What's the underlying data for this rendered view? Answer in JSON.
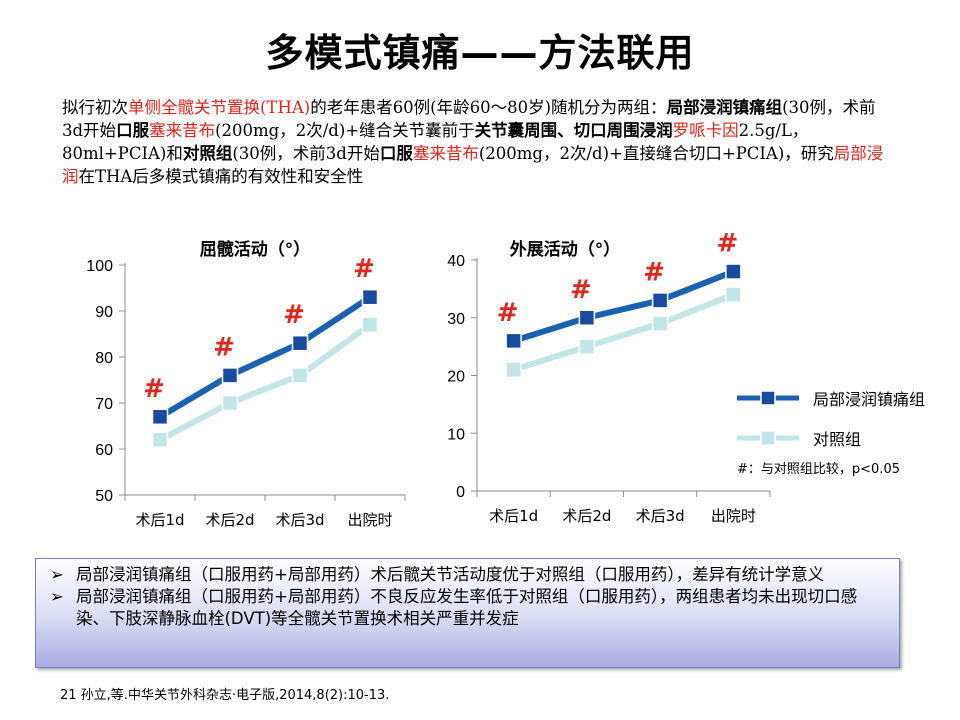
{
  "title": "多模式镇痛——方法联用",
  "intro": {
    "p1": "拟行初次",
    "p2": "单侧全髋关节置换(THA)",
    "p3": "的老年患者60例(年龄60～80岁)随机分为两组：",
    "p4": "局部浸润镇痛组",
    "p5": "(30例，术前3d开始",
    "p6": "口服",
    "p7": "塞来昔布",
    "p8": "(200mg，2次/d)+缝合关节囊前于",
    "p9": "关节囊周围、切口周围浸润",
    "p10": "罗哌卡因",
    "p11": "2.5g/L，80ml+PCIA)和",
    "p12": "对照组",
    "p13": "(30例，术前3d开始",
    "p14": "口服",
    "p15": "塞来昔布",
    "p16": "(200mg，2次/d)+直接缝合切口+PCIA)，研究",
    "p17": "局部浸润",
    "p18": "在THA后多模式镇痛的有效性和安全性"
  },
  "chart_data": [
    {
      "type": "line",
      "title": "屈髋活动（°）",
      "categories": [
        "术后1d",
        "术后2d",
        "术后3d",
        "出院时"
      ],
      "ylim": [
        50,
        100
      ],
      "yticks": [
        50,
        60,
        70,
        80,
        90,
        100
      ],
      "series": [
        {
          "name": "局部浸润镇痛组",
          "values": [
            67,
            76,
            83,
            93
          ],
          "color": "#1a62b0"
        },
        {
          "name": "对照组",
          "values": [
            62,
            70,
            76,
            87
          ],
          "color": "#c2e5e8"
        }
      ],
      "annotations": [
        "#",
        "#",
        "#",
        "#"
      ],
      "annotation_color": "#e0251b",
      "grid": false
    },
    {
      "type": "line",
      "title": "外展活动（°）",
      "categories": [
        "术后1d",
        "术后2d",
        "术后3d",
        "出院时"
      ],
      "ylim": [
        0,
        40
      ],
      "yticks": [
        0,
        10,
        20,
        30,
        40
      ],
      "series": [
        {
          "name": "局部浸润镇痛组",
          "values": [
            26,
            30,
            33,
            38
          ],
          "color": "#1a62b0"
        },
        {
          "name": "对照组",
          "values": [
            21,
            25,
            29,
            34
          ],
          "color": "#c2e5e8"
        }
      ],
      "annotations": [
        "#",
        "#",
        "#",
        "#"
      ],
      "annotation_color": "#e0251b",
      "grid": false
    }
  ],
  "legend": {
    "series1": "局部浸润镇痛组",
    "series2": "对照组",
    "note": "#：与对照组比较，p<0.05"
  },
  "summary": {
    "bullet": "➢",
    "items": [
      "局部浸润镇痛组（口服用药+局部用药）术后髋关节活动度优于对照组（口服用药），差异有统计学意义",
      "局部浸润镇痛组（口服用药+局部用药）不良反应发生率低于对照组（口服用药），两组患者均未出现切口感染、下肢深静脉血栓(DVT)等全髋关节置换术相关严重并发症"
    ]
  },
  "reference": "21 孙立,等.中华关节外科杂志·电子版,2014,8(2):10-13."
}
